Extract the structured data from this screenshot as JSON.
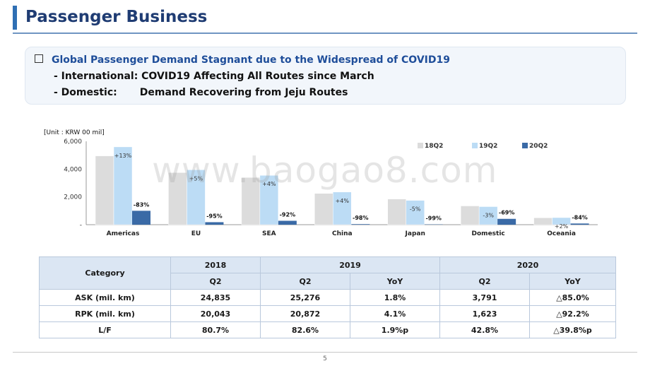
{
  "page": {
    "title": "Passenger Business",
    "page_number": "5",
    "watermark": "www.baogao8.com"
  },
  "summary": {
    "heading": "Global Passenger Demand Stagnant due to the Widespread of COVID19",
    "line1": "- International: COVID19 Affecting All Routes since March",
    "line2_label": "- Domestic:",
    "line2_value": "Demand Recovering from Jeju Routes"
  },
  "chart_data": {
    "type": "bar",
    "unit_label": "[Unit : KRW 00 mil]",
    "categories": [
      "Americas",
      "EU",
      "SEA",
      "China",
      "Japan",
      "Domestic",
      "Oceania"
    ],
    "series": [
      {
        "name": "18Q2",
        "color": "#dcdcdc",
        "values": [
          4950,
          3750,
          3400,
          2250,
          1850,
          1350,
          500
        ]
      },
      {
        "name": "19Q2",
        "color": "#bcdcf5",
        "values": [
          5600,
          3950,
          3550,
          2350,
          1750,
          1300,
          510
        ]
      },
      {
        "name": "20Q2",
        "color": "#3a6aa6",
        "values": [
          1000,
          180,
          280,
          40,
          20,
          420,
          85
        ]
      }
    ],
    "labels_19Q2": [
      "+13%",
      "+5%",
      "+4%",
      "+4%",
      "-5%",
      "-3%",
      "+2%"
    ],
    "labels_20Q2": [
      "-83%",
      "-95%",
      "-92%",
      "-98%",
      "-99%",
      "-69%",
      "-84%"
    ],
    "yticks": [
      {
        "value": 0,
        "label": "-"
      },
      {
        "value": 2000,
        "label": "2,000"
      },
      {
        "value": 4000,
        "label": "4,000"
      },
      {
        "value": 6000,
        "label": "6,000"
      }
    ],
    "ylim": [
      0,
      6000
    ],
    "legend_position": "top-right",
    "grid": false
  },
  "table": {
    "category_label": "Category",
    "years": [
      "2018",
      "2019",
      "2020"
    ],
    "subheaders": [
      "Q2",
      "Q2",
      "YoY",
      "Q2",
      "YoY"
    ],
    "rows": [
      {
        "label": "ASK (mil. km)",
        "cells": [
          "24,835",
          "25,276",
          "1.8%",
          "3,791",
          "△85.0%"
        ]
      },
      {
        "label": "RPK (mil. km)",
        "cells": [
          "20,043",
          "20,872",
          "4.1%",
          "1,623",
          "△92.2%"
        ]
      },
      {
        "label": "L/F",
        "cells": [
          "80.7%",
          "82.6%",
          "1.9%p",
          "42.8%",
          "△39.8%p"
        ]
      }
    ]
  }
}
